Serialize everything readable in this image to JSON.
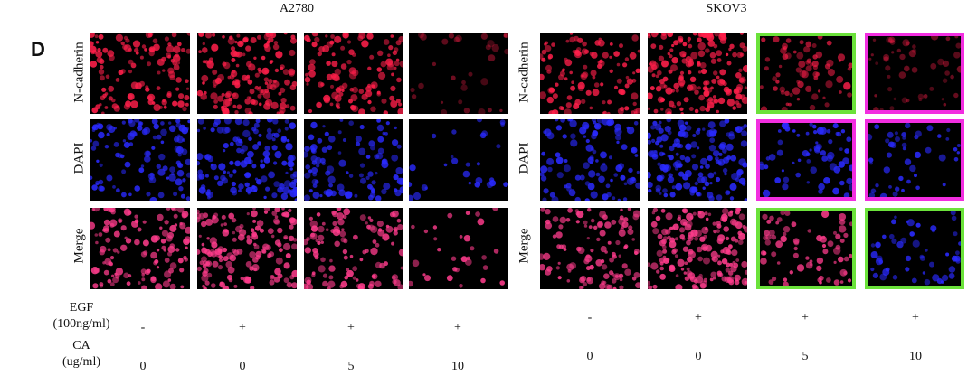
{
  "panel_letter": "D",
  "groups": [
    {
      "title": "A2780"
    },
    {
      "title": "SKOV3"
    }
  ],
  "row_labels": [
    "N-cadherin",
    "DAPI",
    "Merge"
  ],
  "conditions": {
    "egf_label_line1": "EGF",
    "egf_label_line2": "(100ng/ml)",
    "ca_label_line1": "CA",
    "ca_label_line2": "(ug/ml)",
    "a2780_egf": [
      "-",
      "+",
      "+",
      "+"
    ],
    "a2780_ca": [
      "0",
      "0",
      "5",
      "10"
    ],
    "skov3_egf": [
      "-",
      "+",
      "+",
      "+"
    ],
    "skov3_ca": [
      "0",
      "0",
      "5",
      "10"
    ]
  },
  "colors": {
    "ncad_red": "#ff1f4a",
    "dapi_blue": "#2a2aff",
    "merge_pink": "#ff3c8c",
    "frame_green": "#6be23a",
    "frame_magenta": "#f22ee0"
  }
}
